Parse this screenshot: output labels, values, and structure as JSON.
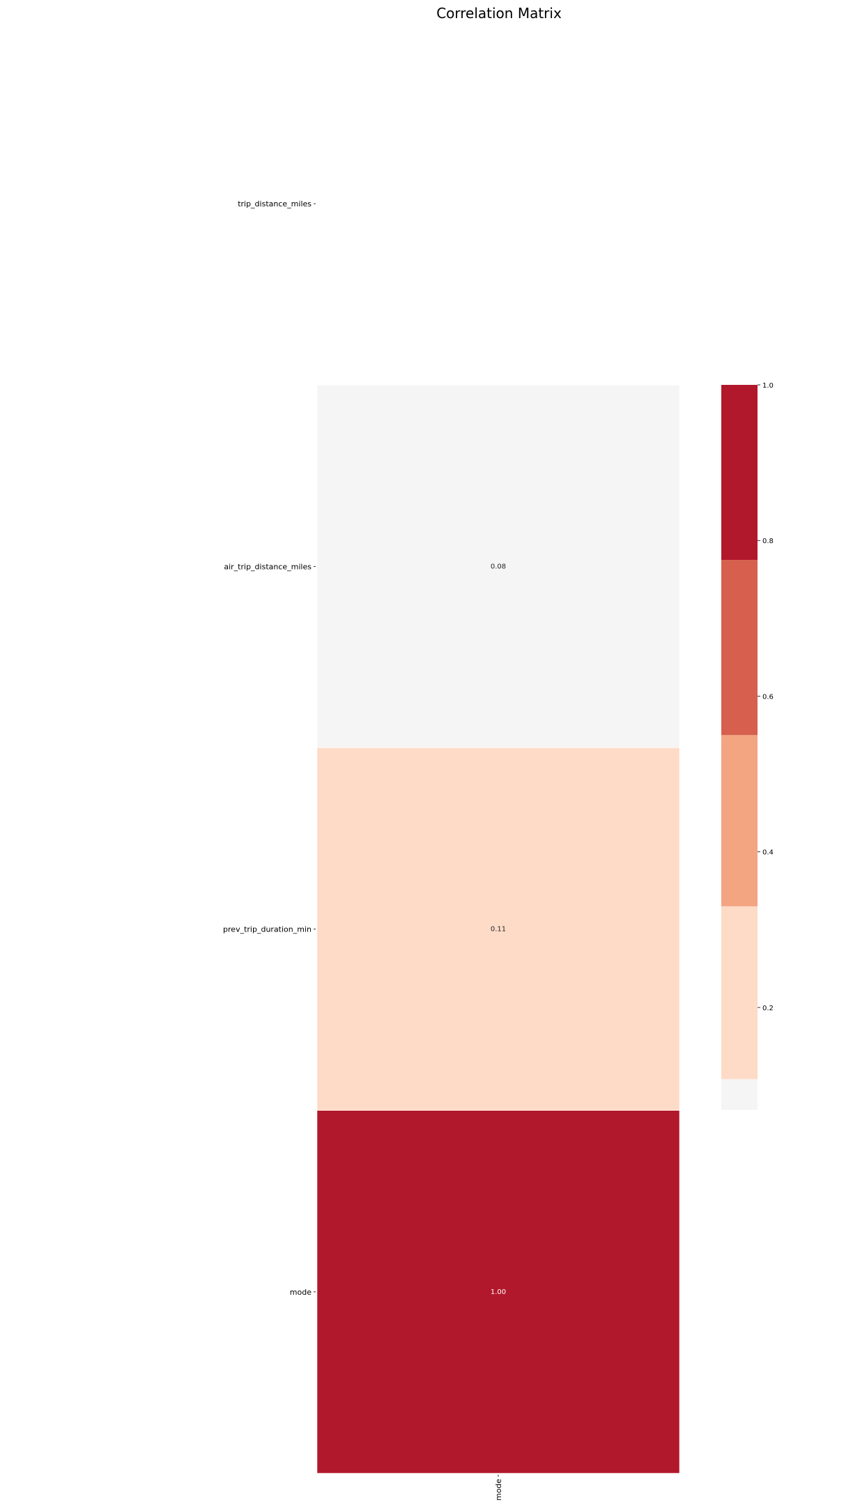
{
  "chart_data": {
    "type": "heatmap",
    "title": "Correlation Matrix",
    "rows": [
      "trip_distance_miles",
      "air_trip_distance_miles",
      "prev_trip_duration_min",
      "mode"
    ],
    "cols": [
      "mode"
    ],
    "values": [
      [
        null
      ],
      [
        0.08
      ],
      [
        0.11
      ],
      [
        1.0
      ]
    ],
    "annotations": [
      [
        ""
      ],
      [
        "0.08"
      ],
      [
        "0.11"
      ],
      [
        "1.00"
      ]
    ],
    "colorbar": {
      "ticks": [
        "0.2",
        "0.4",
        "0.6",
        "0.8",
        "1.0"
      ],
      "tick_values": [
        0.2,
        0.4,
        0.6,
        0.8,
        1.0
      ],
      "range": [
        0.0683,
        1.0
      ],
      "colormap": "RdBu_r (discrete, 6 levels)",
      "bands": [
        {
          "from": 0.0683,
          "to": 0.108,
          "color": "#f5f5f5"
        },
        {
          "from": 0.108,
          "to": 0.33,
          "color": "#fddbc7"
        },
        {
          "from": 0.33,
          "to": 0.55,
          "color": "#f3a582"
        },
        {
          "from": 0.55,
          "to": 0.775,
          "color": "#d6604d"
        },
        {
          "from": 0.775,
          "to": 1.0,
          "color": "#b2182b"
        }
      ]
    },
    "annotation_colors": {
      "light": "#ffffff",
      "dark": "#262626"
    },
    "missing_color": "#ffffff"
  }
}
